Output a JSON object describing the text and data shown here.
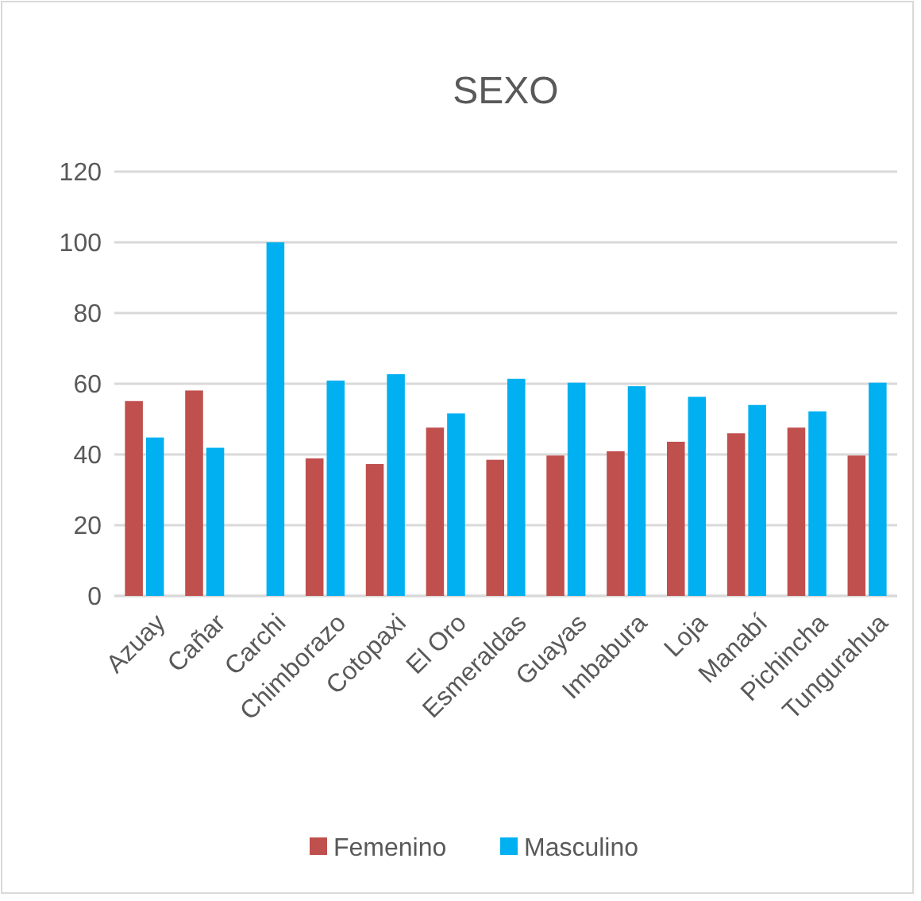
{
  "chart_data": {
    "type": "bar",
    "title": "SEXO",
    "categories": [
      "Azuay",
      "Cañar",
      "Carchi",
      "Chimborazo",
      "Cotopaxi",
      "El Oro",
      "Esmeraldas",
      "Guayas",
      "Imbabura",
      "Loja",
      "Manabí",
      "Pichincha",
      "Tungurahua"
    ],
    "series": [
      {
        "name": "Femenino",
        "color": "#c0504d",
        "values": [
          55.1,
          58.1,
          0,
          38.9,
          37.3,
          47.6,
          38.5,
          39.7,
          40.9,
          43.6,
          46,
          47.6,
          39.7
        ]
      },
      {
        "name": "Masculino",
        "color": "#00b0f0",
        "values": [
          44.8,
          41.9,
          100,
          60.9,
          62.7,
          51.6,
          61.4,
          60.3,
          59.3,
          56.3,
          54,
          52.2,
          60.3
        ]
      }
    ],
    "ylim": [
      0,
      120
    ],
    "yticks": [
      0,
      20,
      40,
      60,
      80,
      100,
      120
    ],
    "grid": "y",
    "legend": "bottom"
  }
}
